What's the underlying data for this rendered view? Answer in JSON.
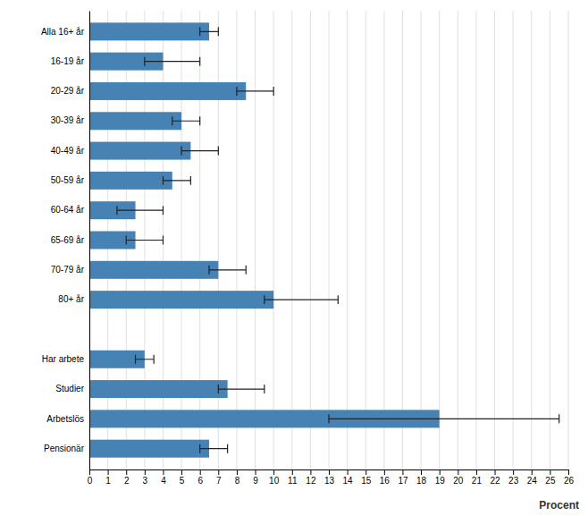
{
  "chart_data": {
    "type": "bar",
    "orientation": "horizontal",
    "categories": [
      "Alla 16+ år",
      "16-19 år",
      "20-29 år",
      "30-39 år",
      "40-49 år",
      "50-59 år",
      "60-64 år",
      "65-69 år",
      "70-79 år",
      "80+ år",
      null,
      "Har arbete",
      "Studier",
      "Arbetslös",
      "Pensionär"
    ],
    "values": [
      6.5,
      4.0,
      8.5,
      5.0,
      5.5,
      4.5,
      2.5,
      2.5,
      7.0,
      10.0,
      null,
      3.0,
      7.5,
      19.0,
      6.5
    ],
    "error_low": [
      0.5,
      1.0,
      0.5,
      0.5,
      0.5,
      0.5,
      1.0,
      0.5,
      0.5,
      0.5,
      null,
      0.5,
      0.5,
      6.0,
      0.5
    ],
    "error_high": [
      0.5,
      2.0,
      1.5,
      1.0,
      1.5,
      1.0,
      1.5,
      1.5,
      1.5,
      3.5,
      null,
      0.5,
      2.0,
      6.5,
      1.0
    ],
    "xlabel": "Procent",
    "xlim": [
      0,
      26
    ],
    "xticks": [
      0,
      1,
      2,
      3,
      4,
      5,
      6,
      7,
      8,
      9,
      10,
      11,
      12,
      13,
      14,
      15,
      16,
      17,
      18,
      19,
      20,
      21,
      22,
      23,
      24,
      25,
      26
    ],
    "grid": true
  }
}
